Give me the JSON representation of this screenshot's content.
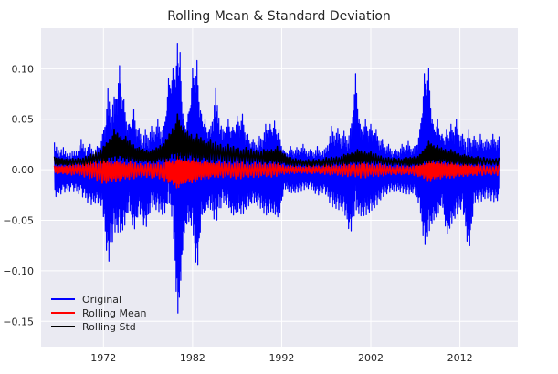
{
  "chart_data": {
    "type": "line",
    "title": "Rolling Mean & Standard Deviation",
    "xlabel": "",
    "ylabel": "",
    "xlim": [
      1965.0,
      2018.5
    ],
    "ylim": [
      -0.175,
      0.14
    ],
    "x_ticks": [
      1972,
      1982,
      1992,
      2002,
      2012
    ],
    "x_tick_labels": [
      "1972",
      "1982",
      "1992",
      "2002",
      "2012"
    ],
    "y_ticks": [
      -0.15,
      -0.1,
      -0.05,
      0.0,
      0.05,
      0.1
    ],
    "y_tick_labels": [
      "−0.15",
      "−0.10",
      "−0.05",
      "0.00",
      "0.05",
      "0.10"
    ],
    "grid": true,
    "legend_position": "lower-left",
    "colors": {
      "background": "#eaeaf2",
      "grid": "#ffffff",
      "original": "#0000ff",
      "rolling_mean": "#ff0000",
      "rolling_std": "#000000"
    },
    "series": [
      {
        "name": "Original",
        "color": "#0000ff",
        "x": [
          1966.5,
          1967.5,
          1968.5,
          1969.5,
          1970.5,
          1971.3,
          1971.9,
          1972.5,
          1973.2,
          1973.8,
          1974.3,
          1974.9,
          1975.4,
          1976.0,
          1976.7,
          1977.4,
          1978.1,
          1978.8,
          1979.3,
          1979.8,
          1980.3,
          1980.6,
          1981.0,
          1981.5,
          1982.0,
          1982.5,
          1983.0,
          1983.4,
          1983.9,
          1984.6,
          1985.4,
          1986.0,
          1986.5,
          1987.0,
          1987.6,
          1988.2,
          1988.8,
          1989.5,
          1990.2,
          1990.7,
          1991.2,
          1991.7,
          1992.3,
          1993.0,
          1993.7,
          1994.4,
          1995.2,
          1996.0,
          1996.8,
          1997.6,
          1998.3,
          1999.0,
          1999.7,
          2000.3,
          2000.8,
          2001.4,
          2002.0,
          2002.6,
          2003.3,
          2004.0,
          2004.8,
          2005.5,
          2006.2,
          2006.9,
          2007.5,
          2008.0,
          2008.5,
          2009.0,
          2009.5,
          2010.0,
          2010.5,
          2011.0,
          2011.6,
          2012.3,
          2013.0,
          2013.6,
          2014.3,
          2015.0,
          2015.7,
          2016.4
        ],
        "y_upper": [
          0.027,
          0.022,
          0.018,
          0.03,
          0.025,
          0.023,
          0.035,
          0.08,
          0.072,
          0.103,
          0.07,
          0.045,
          0.06,
          0.041,
          0.04,
          0.043,
          0.05,
          0.043,
          0.09,
          0.1,
          0.125,
          0.116,
          0.05,
          0.055,
          0.1,
          0.108,
          0.055,
          0.05,
          0.04,
          0.081,
          0.04,
          0.05,
          0.042,
          0.053,
          0.055,
          0.035,
          0.03,
          0.033,
          0.045,
          0.045,
          0.048,
          0.04,
          0.018,
          0.023,
          0.022,
          0.025,
          0.02,
          0.023,
          0.02,
          0.043,
          0.041,
          0.038,
          0.041,
          0.095,
          0.045,
          0.05,
          0.045,
          0.04,
          0.03,
          0.025,
          0.02,
          0.025,
          0.028,
          0.023,
          0.04,
          0.095,
          0.1,
          0.045,
          0.05,
          0.035,
          0.04,
          0.045,
          0.05,
          0.035,
          0.04,
          0.033,
          0.035,
          0.03,
          0.035,
          0.033
        ],
        "y_lower": [
          -0.03,
          -0.025,
          -0.022,
          -0.028,
          -0.038,
          -0.035,
          -0.04,
          -0.105,
          -0.068,
          -0.07,
          -0.065,
          -0.04,
          -0.068,
          -0.045,
          -0.065,
          -0.04,
          -0.045,
          -0.05,
          -0.035,
          -0.06,
          -0.16,
          -0.13,
          -0.07,
          -0.055,
          -0.065,
          -0.115,
          -0.05,
          -0.045,
          -0.04,
          -0.06,
          -0.035,
          -0.04,
          -0.05,
          -0.045,
          -0.05,
          -0.04,
          -0.035,
          -0.04,
          -0.05,
          -0.045,
          -0.048,
          -0.052,
          -0.02,
          -0.025,
          -0.025,
          -0.022,
          -0.02,
          -0.028,
          -0.024,
          -0.04,
          -0.043,
          -0.045,
          -0.07,
          -0.045,
          -0.05,
          -0.05,
          -0.045,
          -0.04,
          -0.03,
          -0.025,
          -0.022,
          -0.025,
          -0.027,
          -0.025,
          -0.04,
          -0.085,
          -0.07,
          -0.055,
          -0.05,
          -0.035,
          -0.07,
          -0.06,
          -0.05,
          -0.04,
          -0.09,
          -0.035,
          -0.035,
          -0.03,
          -0.035,
          -0.033
        ]
      },
      {
        "name": "Rolling Mean",
        "color": "#ff0000",
        "x": [
          1966.5,
          1968.0,
          1970.0,
          1972.0,
          1973.5,
          1975.0,
          1977.0,
          1979.0,
          1980.3,
          1981.0,
          1982.0,
          1983.5,
          1985.0,
          1987.0,
          1989.0,
          1991.0,
          1993.0,
          1995.0,
          1997.0,
          1999.0,
          2001.0,
          2003.0,
          2005.0,
          2007.0,
          2008.5,
          2009.5,
          2011.0,
          2012.5,
          2014.0,
          2016.4
        ],
        "y_upper": [
          0.004,
          0.005,
          0.008,
          0.012,
          0.01,
          0.008,
          0.007,
          0.01,
          0.013,
          0.012,
          0.012,
          0.01,
          0.008,
          0.009,
          0.007,
          0.008,
          0.004,
          0.004,
          0.005,
          0.006,
          0.008,
          0.006,
          0.004,
          0.005,
          0.01,
          0.009,
          0.008,
          0.006,
          0.005,
          0.005
        ],
        "y_lower": [
          -0.004,
          -0.005,
          -0.008,
          -0.015,
          -0.012,
          -0.01,
          -0.008,
          -0.012,
          -0.02,
          -0.014,
          -0.014,
          -0.01,
          -0.008,
          -0.01,
          -0.008,
          -0.008,
          -0.004,
          -0.004,
          -0.005,
          -0.007,
          -0.009,
          -0.007,
          -0.005,
          -0.006,
          -0.012,
          -0.01,
          -0.009,
          -0.007,
          -0.006,
          -0.006
        ]
      },
      {
        "name": "Rolling Std",
        "color": "#000000",
        "x": [
          1966.5,
          1968.0,
          1970.0,
          1972.0,
          1973.2,
          1974.5,
          1976.0,
          1977.5,
          1979.0,
          1980.3,
          1981.0,
          1982.5,
          1984.0,
          1986.0,
          1988.0,
          1990.0,
          1991.5,
          1993.0,
          1995.0,
          1997.0,
          1999.0,
          2000.5,
          2002.0,
          2004.0,
          2006.0,
          2007.5,
          2008.5,
          2009.5,
          2011.0,
          2012.5,
          2014.0,
          2016.4
        ],
        "y_upper": [
          0.013,
          0.011,
          0.013,
          0.023,
          0.04,
          0.033,
          0.022,
          0.02,
          0.03,
          0.055,
          0.042,
          0.035,
          0.03,
          0.025,
          0.022,
          0.02,
          0.023,
          0.012,
          0.01,
          0.012,
          0.015,
          0.02,
          0.018,
          0.012,
          0.012,
          0.015,
          0.028,
          0.024,
          0.02,
          0.015,
          0.013,
          0.012
        ],
        "y_lower": [
          0.004,
          0.004,
          0.004,
          0.006,
          0.008,
          0.007,
          0.006,
          0.006,
          0.007,
          0.009,
          0.008,
          0.007,
          0.006,
          0.006,
          0.005,
          0.005,
          0.005,
          0.003,
          0.003,
          0.003,
          0.004,
          0.005,
          0.005,
          0.004,
          0.003,
          0.004,
          0.006,
          0.006,
          0.005,
          0.004,
          0.004,
          0.004
        ]
      }
    ]
  }
}
